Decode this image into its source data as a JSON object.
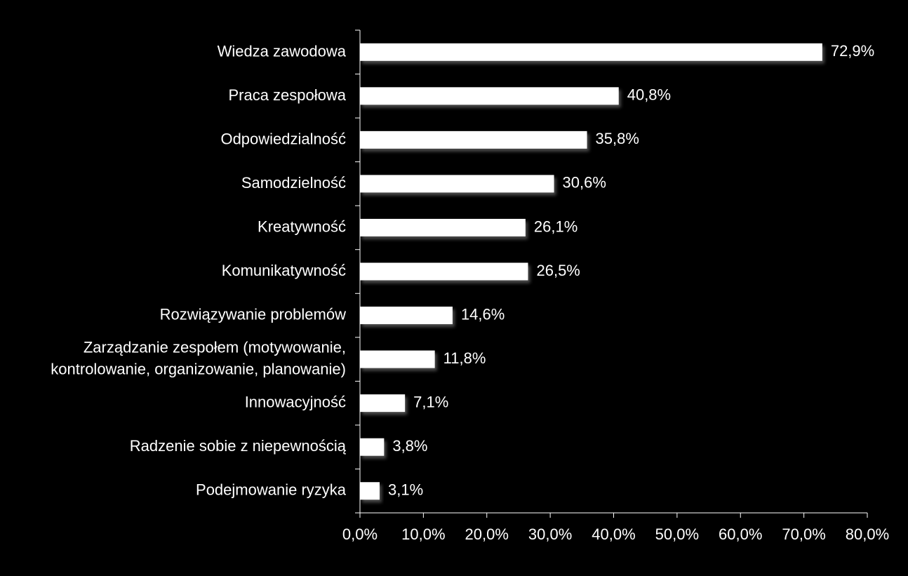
{
  "colors": {
    "background": "#000000",
    "bar": "#ffffff",
    "text": "#ffffff",
    "axis": "#ffffff"
  },
  "chart_data": {
    "type": "bar",
    "orientation": "horizontal",
    "categories": [
      [
        "Wiedza zawodowa"
      ],
      [
        "Praca zespołowa"
      ],
      [
        "Odpowiedzialność"
      ],
      [
        "Samodzielność"
      ],
      [
        "Kreatywność"
      ],
      [
        "Komunikatywność"
      ],
      [
        "Rozwiązywanie problemów"
      ],
      [
        "Zarządzanie zespołem (motywowanie,",
        "kontrolowanie, organizowanie, planowanie)"
      ],
      [
        "Innowacyjność"
      ],
      [
        "Radzenie sobie z niepewnością"
      ],
      [
        "Podejmowanie ryzyka"
      ]
    ],
    "values": [
      72.9,
      40.8,
      35.8,
      30.6,
      26.1,
      26.5,
      14.6,
      11.8,
      7.1,
      3.8,
      3.1
    ],
    "data_labels": [
      "72,9%",
      "40,8%",
      "35,8%",
      "30,6%",
      "26,1%",
      "26,5%",
      "14,6%",
      "11,8%",
      "7,1%",
      "3,8%",
      "3,1%"
    ],
    "xlim": [
      0,
      80
    ],
    "xticks": [
      0,
      10,
      20,
      30,
      40,
      50,
      60,
      70,
      80
    ],
    "xtick_labels": [
      "0,0%",
      "10,0%",
      "20,0%",
      "30,0%",
      "40,0%",
      "50,0%",
      "60,0%",
      "70,0%",
      "80,0%"
    ],
    "grid": false,
    "legend": "none"
  }
}
